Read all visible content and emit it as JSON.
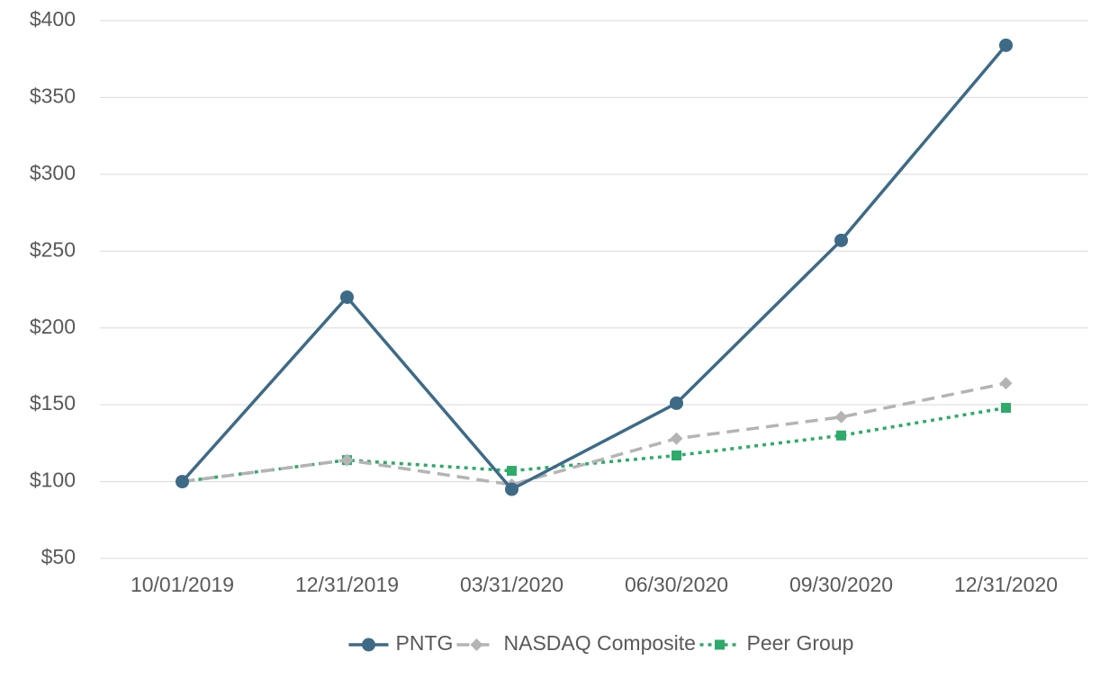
{
  "chart_data": {
    "type": "line",
    "categories": [
      "10/01/2019",
      "12/31/2019",
      "03/31/2020",
      "06/30/2020",
      "09/30/2020",
      "12/31/2020"
    ],
    "series": [
      {
        "name": "PNTG",
        "color": "#3d6a87",
        "marker": "circle",
        "dash": "solid",
        "values": [
          100,
          220,
          95,
          151,
          257,
          384
        ]
      },
      {
        "name": "NASDAQ Composite",
        "color": "#b4b4b4",
        "marker": "diamond",
        "dash": "dashed",
        "values": [
          100,
          114,
          98,
          128,
          142,
          164
        ]
      },
      {
        "name": "Peer Group",
        "color": "#2eaa6a",
        "marker": "square",
        "dash": "dotted",
        "values": [
          100,
          114,
          107,
          117,
          130,
          148
        ]
      }
    ],
    "ylim": [
      50,
      400
    ],
    "yticks": [
      {
        "value": 50,
        "label": "$50"
      },
      {
        "value": 100,
        "label": "$100"
      },
      {
        "value": 150,
        "label": "$150"
      },
      {
        "value": 200,
        "label": "$200"
      },
      {
        "value": 250,
        "label": "$250"
      },
      {
        "value": 300,
        "label": "$300"
      },
      {
        "value": 350,
        "label": "$350"
      },
      {
        "value": 400,
        "label": "$400"
      }
    ],
    "grid": true,
    "legend": "bottom"
  }
}
